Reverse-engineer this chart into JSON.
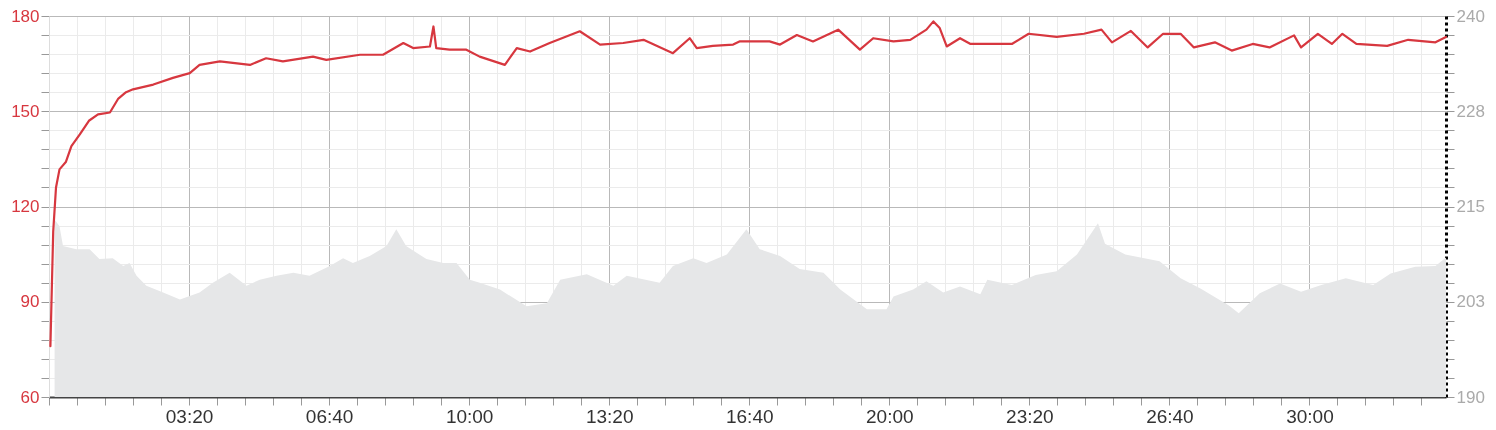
{
  "chart_data": {
    "type": "line",
    "grid": true,
    "xlim": [
      0,
      1995
    ],
    "xticks": [
      {
        "value": 0,
        "label": null
      },
      {
        "value": 40,
        "label": null
      },
      {
        "value": 80,
        "label": null
      },
      {
        "value": 120,
        "label": null
      },
      {
        "value": 160,
        "label": null
      },
      {
        "value": 200,
        "label": "03:20"
      },
      {
        "value": 240,
        "label": null
      },
      {
        "value": 280,
        "label": null
      },
      {
        "value": 320,
        "label": null
      },
      {
        "value": 360,
        "label": null
      },
      {
        "value": 400,
        "label": "06:40"
      },
      {
        "value": 440,
        "label": null
      },
      {
        "value": 480,
        "label": null
      },
      {
        "value": 520,
        "label": null
      },
      {
        "value": 560,
        "label": null
      },
      {
        "value": 600,
        "label": "10:00"
      },
      {
        "value": 640,
        "label": null
      },
      {
        "value": 680,
        "label": null
      },
      {
        "value": 720,
        "label": null
      },
      {
        "value": 760,
        "label": null
      },
      {
        "value": 800,
        "label": "13:20"
      },
      {
        "value": 840,
        "label": null
      },
      {
        "value": 880,
        "label": null
      },
      {
        "value": 920,
        "label": null
      },
      {
        "value": 960,
        "label": null
      },
      {
        "value": 1000,
        "label": "16:40"
      },
      {
        "value": 1040,
        "label": null
      },
      {
        "value": 1080,
        "label": null
      },
      {
        "value": 1120,
        "label": null
      },
      {
        "value": 1160,
        "label": null
      },
      {
        "value": 1200,
        "label": "20:00"
      },
      {
        "value": 1240,
        "label": null
      },
      {
        "value": 1280,
        "label": null
      },
      {
        "value": 1320,
        "label": null
      },
      {
        "value": 1360,
        "label": null
      },
      {
        "value": 1400,
        "label": "23:20"
      },
      {
        "value": 1440,
        "label": null
      },
      {
        "value": 1480,
        "label": null
      },
      {
        "value": 1520,
        "label": null
      },
      {
        "value": 1560,
        "label": null
      },
      {
        "value": 1600,
        "label": "26:40"
      },
      {
        "value": 1640,
        "label": null
      },
      {
        "value": 1680,
        "label": null
      },
      {
        "value": 1720,
        "label": null
      },
      {
        "value": 1760,
        "label": null
      },
      {
        "value": 1800,
        "label": "30:00"
      },
      {
        "value": 1840,
        "label": null
      },
      {
        "value": 1880,
        "label": null
      },
      {
        "value": 1920,
        "label": null
      },
      {
        "value": 1960,
        "label": null
      }
    ],
    "ylim": [
      60,
      180
    ],
    "yticks": [
      60,
      {
        "value": 66,
        "label": null
      },
      {
        "value": 72,
        "label": null
      },
      {
        "value": 78,
        "label": null
      },
      {
        "value": 84,
        "label": null
      },
      90,
      {
        "value": 96,
        "label": null
      },
      {
        "value": 102,
        "label": null
      },
      {
        "value": 108,
        "label": null
      },
      {
        "value": 114,
        "label": null
      },
      120,
      {
        "value": 126,
        "label": null
      },
      {
        "value": 132,
        "label": null
      },
      {
        "value": 138,
        "label": null
      },
      {
        "value": 144,
        "label": null
      },
      150,
      {
        "value": 156,
        "label": null
      },
      {
        "value": 162,
        "label": null
      },
      {
        "value": 168,
        "label": null
      },
      {
        "value": 174,
        "label": null
      },
      180
    ],
    "y2lim": [
      190,
      240
    ],
    "y2ticks": [
      190,
      {
        "value": 192.5,
        "label": null
      },
      {
        "value": 195,
        "label": null
      },
      {
        "value": 197.5,
        "label": null
      },
      {
        "value": 200,
        "label": null
      },
      {
        "value": 202.5,
        "label": "203"
      },
      {
        "value": 205,
        "label": null
      },
      {
        "value": 207.5,
        "label": null
      },
      {
        "value": 210,
        "label": null
      },
      {
        "value": 212.5,
        "label": null
      },
      215,
      {
        "value": 217.5,
        "label": null
      },
      {
        "value": 220,
        "label": null
      },
      {
        "value": 222.5,
        "label": null
      },
      {
        "value": 225,
        "label": null
      },
      {
        "value": 227.5,
        "label": "228"
      },
      {
        "value": 230,
        "label": null
      },
      {
        "value": 232.5,
        "label": null
      },
      {
        "value": 235,
        "label": null
      },
      {
        "value": 237.5,
        "label": null
      },
      240
    ],
    "series": [
      {
        "type": "area",
        "axis": "y2",
        "color": "#e6e7e8",
        "x": [
          8,
          15,
          20,
          39,
          58,
          72,
          91,
          106,
          115,
          125,
          139,
          163,
          187,
          215,
          234,
          258,
          282,
          301,
          325,
          349,
          372,
          401,
          420,
          434,
          458,
          482,
          496,
          510,
          539,
          563,
          582,
          601,
          615,
          644,
          682,
          711,
          730,
          768,
          806,
          825,
          872,
          891,
          920,
          939,
          968,
          996,
          1015,
          1044,
          1072,
          1106,
          1130,
          1168,
          1196,
          1206,
          1234,
          1253,
          1277,
          1301,
          1330,
          1340,
          1375,
          1409,
          1439,
          1468,
          1498,
          1508,
          1537,
          1586,
          1616,
          1645,
          1685,
          1699,
          1729,
          1758,
          1788,
          1817,
          1852,
          1891,
          1916,
          1951,
          1980,
          1995
        ],
        "values": [
          213.3,
          212.4,
          209.8,
          209.4,
          209.4,
          208.1,
          208.2,
          207.2,
          207.6,
          205.9,
          204.6,
          203.7,
          202.8,
          203.7,
          205,
          206.3,
          204.6,
          205.4,
          205.9,
          206.3,
          205.9,
          207.2,
          208.2,
          207.6,
          208.5,
          209.8,
          212,
          209.8,
          208.1,
          207.6,
          207.6,
          205.4,
          205,
          204.1,
          201.9,
          202.3,
          205.4,
          206.1,
          204.6,
          205.9,
          205,
          207.2,
          208.2,
          207.6,
          208.7,
          212,
          209.4,
          208.5,
          206.8,
          206.3,
          204.1,
          201.5,
          201.5,
          203.2,
          204.1,
          205.2,
          203.7,
          204.5,
          203.5,
          205.4,
          204.7,
          206,
          206.5,
          208.7,
          212.8,
          210.1,
          208.7,
          207.8,
          205.6,
          204.2,
          202,
          201,
          203.6,
          204.9,
          203.8,
          204.7,
          205.6,
          204.7,
          206.2,
          207.1,
          207.2,
          208.3
        ]
      },
      {
        "type": "line",
        "axis": "y",
        "color": "#d7373f",
        "x": [
          2,
          6,
          10,
          15,
          24,
          32,
          44,
          57,
          70,
          87,
          99,
          110,
          120,
          149,
          177,
          201,
          215,
          244,
          287,
          310,
          334,
          377,
          396,
          444,
          477,
          506,
          520,
          544,
          549,
          553,
          572,
          596,
          615,
          651,
          668,
          687,
          715,
          758,
          787,
          820,
          849,
          891,
          915,
          925,
          948,
          977,
          986,
          1029,
          1044,
          1068,
          1091,
          1127,
          1158,
          1177,
          1206,
          1230,
          1253,
          1263,
          1272,
          1282,
          1301,
          1316,
          1375,
          1399,
          1439,
          1478,
          1503,
          1518,
          1545,
          1569,
          1591,
          1616,
          1635,
          1665,
          1689,
          1719,
          1743,
          1778,
          1788,
          1812,
          1832,
          1847,
          1867,
          1911,
          1941,
          1980,
          1995
        ],
        "values": [
          76,
          112,
          126,
          131.7,
          134,
          139,
          142.7,
          147,
          149,
          149.6,
          154,
          156,
          156.9,
          158.4,
          160.5,
          162,
          164.6,
          165.7,
          164.6,
          166.7,
          165.7,
          167.2,
          166.2,
          167.8,
          167.8,
          171.5,
          169.9,
          170.4,
          176.7,
          169.9,
          169.4,
          169.4,
          167.2,
          164.6,
          169.9,
          168.8,
          171.5,
          175.2,
          171,
          171.5,
          172.5,
          168.3,
          173,
          169.9,
          170.6,
          171,
          172,
          172,
          171,
          174,
          172,
          175.7,
          169.4,
          173,
          172,
          172.5,
          175.7,
          178.3,
          176.2,
          170.4,
          173,
          171.2,
          171.2,
          174.4,
          173.4,
          174.4,
          175.7,
          171.7,
          175.3,
          170.1,
          174.4,
          174.4,
          170.1,
          171.7,
          169.1,
          171.2,
          170.1,
          173.9,
          170.1,
          174.4,
          171.2,
          174.4,
          171.2,
          170.6,
          172.5,
          171.7,
          173.4
        ]
      }
    ]
  }
}
